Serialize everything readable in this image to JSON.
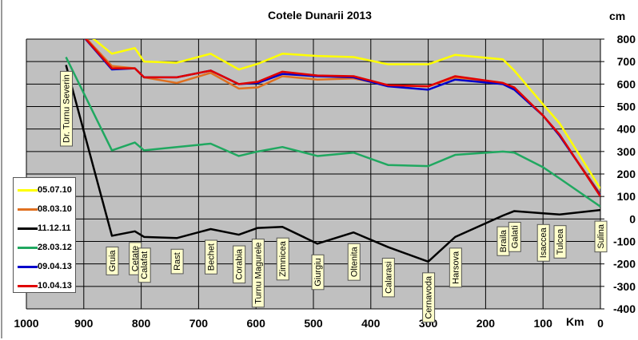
{
  "chart_data": {
    "type": "line",
    "title": "Cotele Dunarii 2013",
    "xlabel": "Km",
    "ylabel": "cm",
    "xlim": [
      1000,
      0
    ],
    "ylim": [
      -400,
      800
    ],
    "x_ticks": [
      "1000",
      "900",
      "800",
      "700",
      "600",
      "500",
      "400",
      "300",
      "200",
      "100",
      "0"
    ],
    "y_ticks": [
      "800",
      "700",
      "600",
      "500",
      "400",
      "300",
      "200",
      "100",
      "0",
      "-100",
      "-200",
      "-300",
      "-400"
    ],
    "grid": true,
    "legend_position": "left",
    "stations": [
      {
        "name": "Dr. Turnu  Severin",
        "km": 931
      },
      {
        "name": "Gruia",
        "km": 851
      },
      {
        "name": "Cetate",
        "km": 811
      },
      {
        "name": "Calafat",
        "km": 795
      },
      {
        "name": "Rast",
        "km": 738
      },
      {
        "name": "Bechet",
        "km": 679
      },
      {
        "name": "Corabia",
        "km": 630
      },
      {
        "name": "Turnu  Magurele",
        "km": 597
      },
      {
        "name": "Zimnicea",
        "km": 554
      },
      {
        "name": "Giurgiu",
        "km": 493
      },
      {
        "name": "Oltenita",
        "km": 430
      },
      {
        "name": "Calarasi",
        "km": 370
      },
      {
        "name": "Cernavoda",
        "km": 300
      },
      {
        "name": "Harsova",
        "km": 253
      },
      {
        "name": "Braila",
        "km": 170
      },
      {
        "name": "Galati",
        "km": 150
      },
      {
        "name": "Isaccea",
        "km": 100
      },
      {
        "name": "Tulcea",
        "km": 71
      },
      {
        "name": "Sulina",
        "km": 0
      }
    ],
    "x": [
      931,
      851,
      811,
      795,
      738,
      679,
      630,
      597,
      554,
      493,
      430,
      370,
      300,
      253,
      170,
      150,
      100,
      71,
      0
    ],
    "series": [
      {
        "name": "05.07.10",
        "color": "#ffff00",
        "values": [
          900,
          735,
          760,
          700,
          695,
          735,
          665,
          690,
          735,
          725,
          720,
          688,
          688,
          730,
          710,
          660,
          510,
          425,
          135
        ]
      },
      {
        "name": "08.03.10",
        "color": "#e07020",
        "values": [
          900,
          680,
          670,
          630,
          605,
          650,
          580,
          585,
          635,
          620,
          625,
          595,
          590,
          630,
          605,
          580,
          460,
          370,
          110
        ]
      },
      {
        "name": "11.12.11",
        "color": "#000000",
        "values": [
          685,
          -75,
          -55,
          -80,
          -85,
          -45,
          -70,
          -40,
          -35,
          -110,
          -60,
          -125,
          -190,
          -80,
          15,
          35,
          25,
          20,
          40
        ]
      },
      {
        "name": "28.03.12",
        "color": "#20a860",
        "values": [
          720,
          305,
          340,
          305,
          320,
          335,
          280,
          300,
          320,
          280,
          295,
          240,
          235,
          285,
          300,
          295,
          230,
          180,
          55
        ]
      },
      {
        "name": "09.04.13",
        "color": "#0000cc",
        "values": [
          900,
          665,
          670,
          630,
          630,
          660,
          600,
          605,
          645,
          635,
          630,
          590,
          575,
          620,
          600,
          575,
          460,
          370,
          105
        ]
      },
      {
        "name": "10.04.13",
        "color": "#e00000",
        "values": [
          900,
          670,
          670,
          630,
          630,
          660,
          600,
          610,
          655,
          638,
          635,
          595,
          590,
          635,
          605,
          585,
          460,
          375,
          100
        ]
      }
    ]
  }
}
